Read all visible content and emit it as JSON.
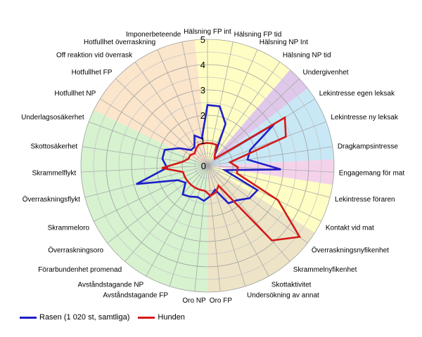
{
  "chart_data": {
    "type": "radar",
    "title": "",
    "rlim": [
      0,
      5
    ],
    "ticks": [
      "1",
      "2",
      "3",
      "4",
      "5"
    ],
    "categories": [
      "Hälsning FP int",
      "Hälsning FP tid",
      "Hälsning NP Int",
      "Hälsning NP tid",
      "Undergivenhet",
      "Lekintresse egen leksak",
      "Lekintresse ny leksak",
      "Dragkampsintresse",
      "Engagemang för mat",
      "Lekintresse föraren",
      "Kontakt vid mat",
      "Överraskningsnyfikenhet",
      "Skrammelnyfikenhet",
      "Skottaktivitet",
      "Undersökning av annat",
      "Oro FP",
      "Oro NP",
      "Avståndstagande FP",
      "Avståndstagande NP",
      "Förarbundenhet promenad",
      "Överraskningsoro",
      "Skrammeloro",
      "Överraskningsflykt",
      "Skrammelflykt",
      "Skottosäkerhet",
      "Underlagsosäkerhet",
      "Hotfullhet NP",
      "Hotfullhet FP",
      "Off reaktion vid överrask",
      "Hotfullhet överraskning",
      "Imponerbeteende"
    ],
    "series": [
      {
        "name": "Rasen (1 020 st, samtliga)",
        "color": "#1f1fc8",
        "values": [
          2.4,
          2.4,
          1.8,
          0.5,
          0.4,
          3.1,
          1.8,
          1.6,
          2.9,
          0.7,
          2.2,
          2.1,
          1.8,
          1.7,
          1.0,
          1.2,
          1.4,
          1.3,
          1.4,
          1.5,
          1.1,
          1.3,
          2.9,
          1.6,
          1.8,
          1.8,
          1.3,
          0.9,
          0.9,
          1.3,
          1.1
        ]
      },
      {
        "name": "Hunden",
        "color": "#d41a1a",
        "values": [
          0.9,
          0.9,
          0.9,
          0.5,
          0.4,
          3.6,
          3.3,
          0.9,
          1.2,
          1.2,
          3.1,
          4.6,
          3.9,
          0.9,
          1.1,
          1.2,
          1.0,
          1.0,
          1.0,
          1.0,
          1.0,
          1.0,
          1.0,
          1.8,
          1.0,
          0.8,
          0.8,
          0.7,
          0.8,
          0.9,
          0.9
        ]
      }
    ],
    "sector_colors": [
      "#fefec4",
      "#dfc8ea",
      "#c8e8f6",
      "#f4d3ea",
      "#fefec4",
      "#ede4c7",
      "#d6f2cf",
      "#fbe5cb"
    ],
    "sectors": [
      {
        "from": 0,
        "to": 4,
        "color_index": 0
      },
      {
        "from": 4,
        "to": 5,
        "color_index": 1
      },
      {
        "from": 5,
        "to": 8,
        "color_index": 2
      },
      {
        "from": 8,
        "to": 9,
        "color_index": 3
      },
      {
        "from": 9,
        "to": 11,
        "color_index": 4
      },
      {
        "from": 11,
        "to": 16,
        "color_index": 5
      },
      {
        "from": 16,
        "to": 26,
        "color_index": 6
      },
      {
        "from": 26,
        "to": 31,
        "color_index": 7
      }
    ],
    "grid": true,
    "legend": "bottom-left"
  }
}
